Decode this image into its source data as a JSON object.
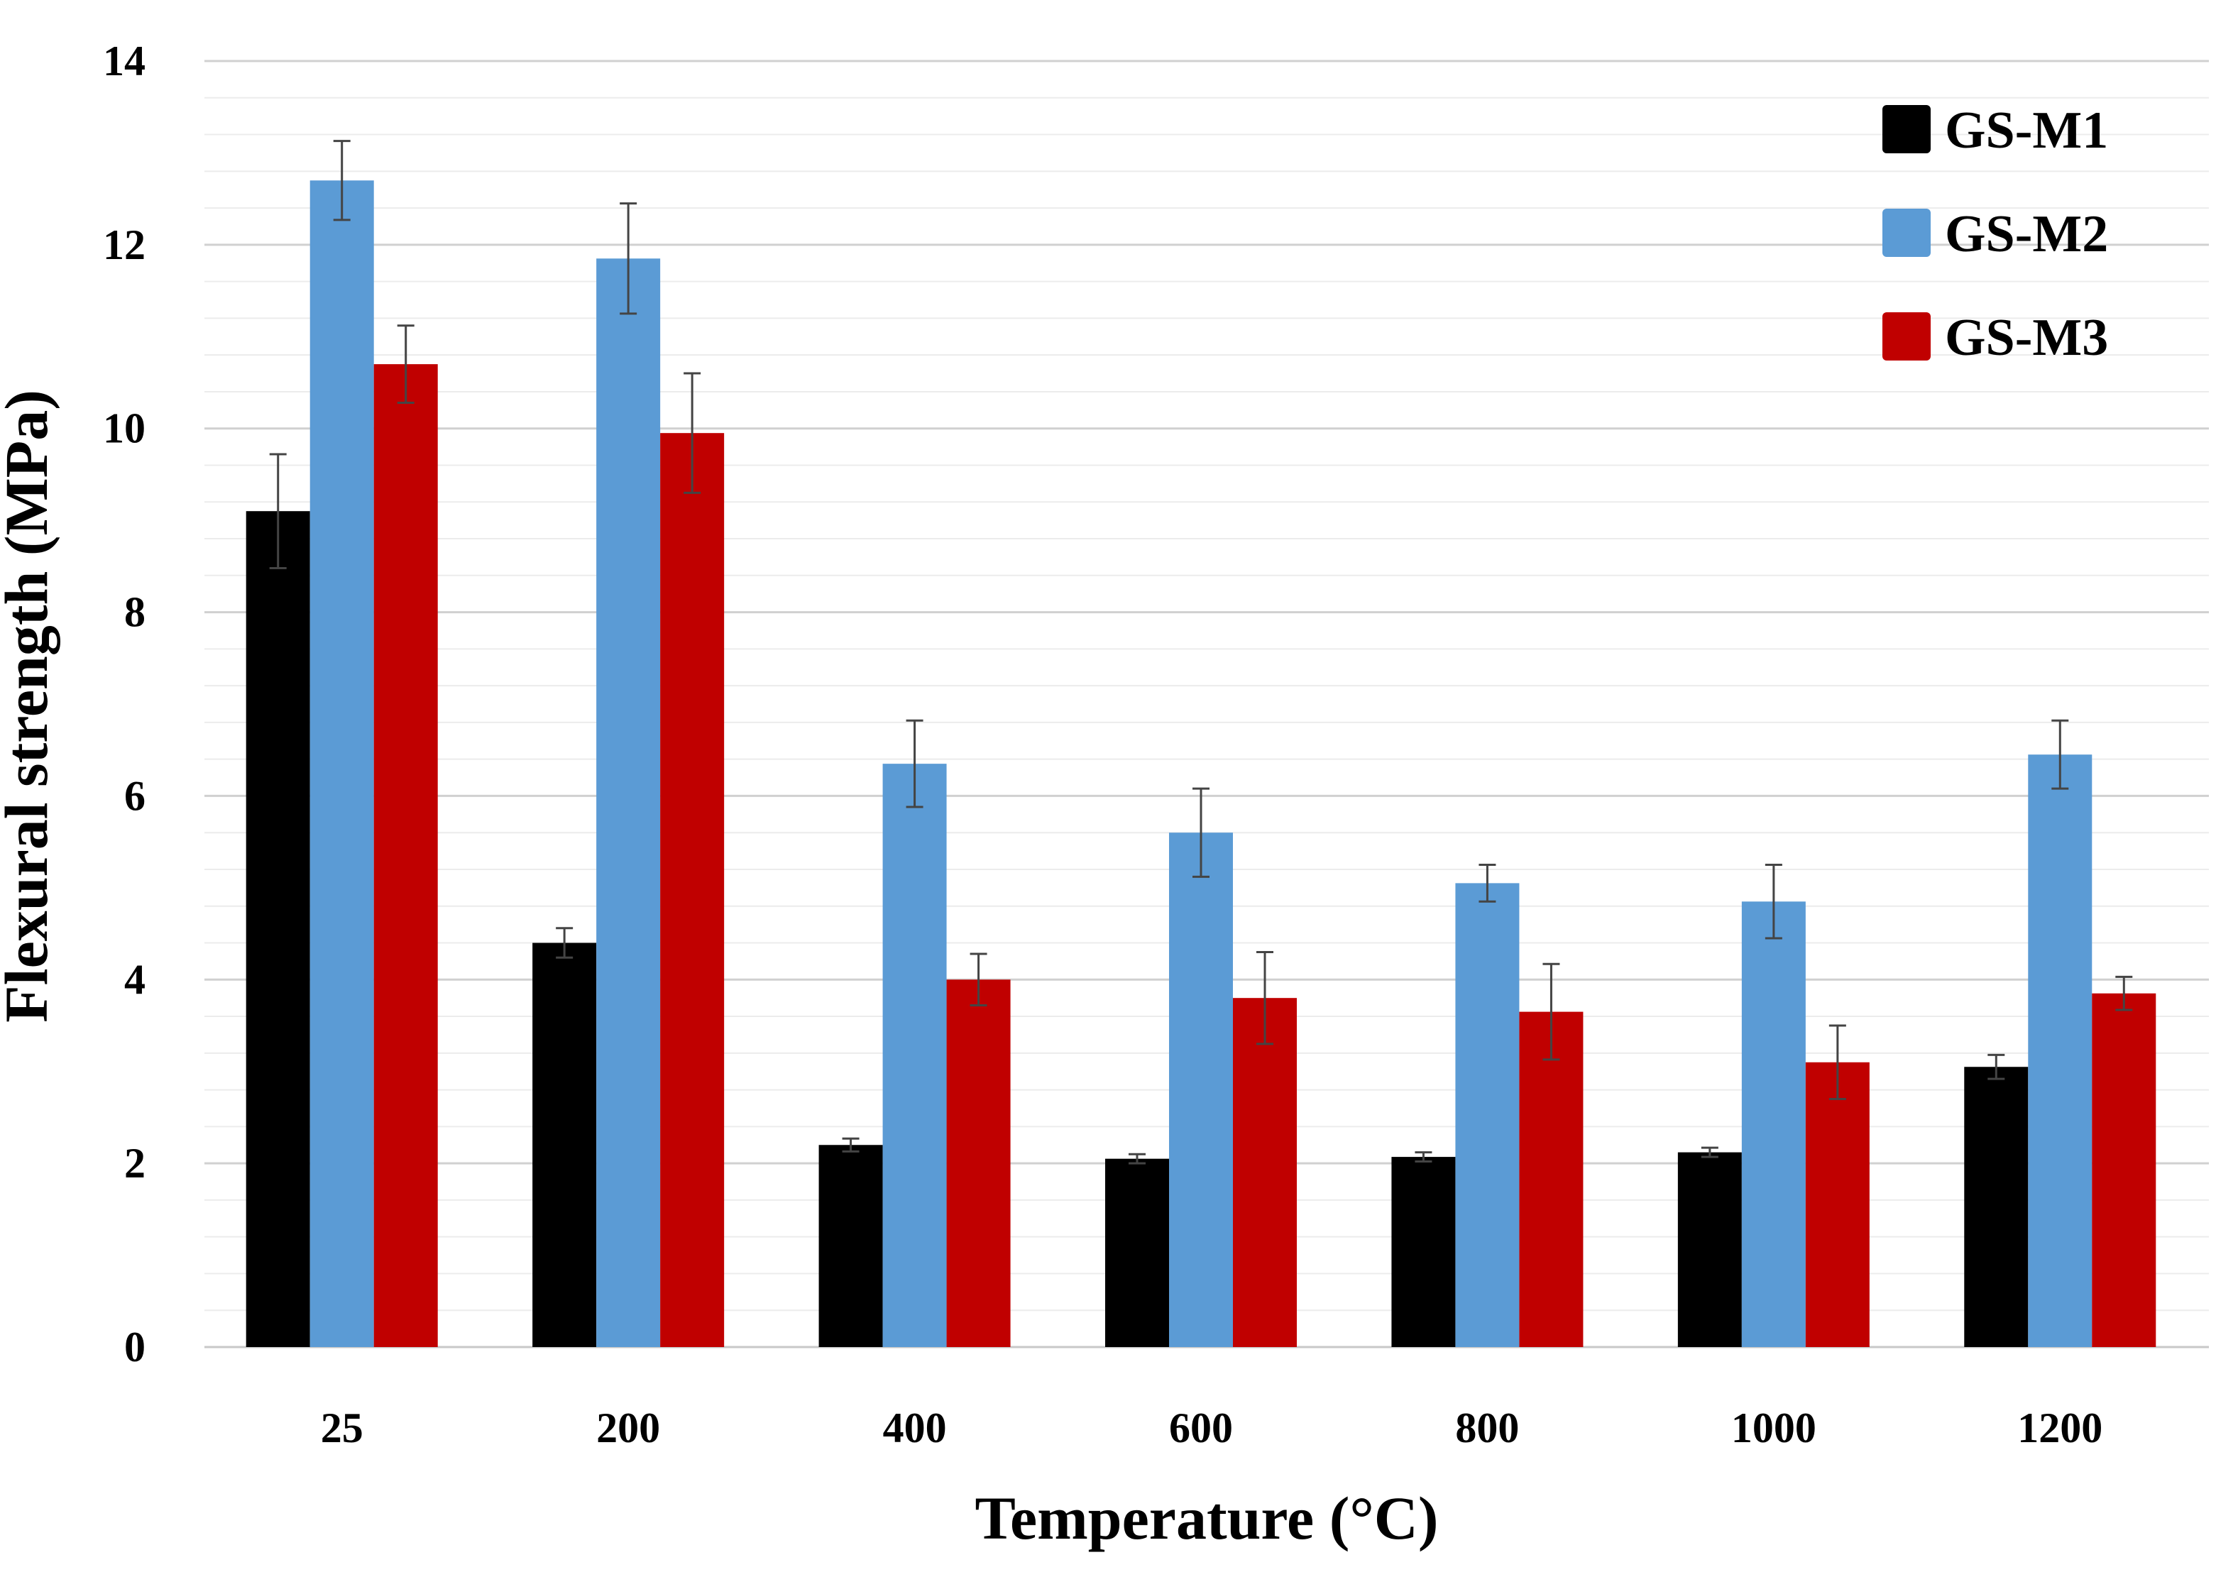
{
  "chart_data": {
    "type": "bar",
    "title": "",
    "xlabel": "Temperature (°C)",
    "ylabel": "Flexural strength (MPa)",
    "categories": [
      "25",
      "200",
      "400",
      "600",
      "800",
      "1000",
      "1200"
    ],
    "ylim": [
      0,
      14
    ],
    "yticks": [
      "0",
      "2",
      "4",
      "6",
      "8",
      "10",
      "12",
      "14"
    ],
    "grid": true,
    "legend_position": "top-right",
    "series": [
      {
        "name": "GS-M1",
        "color": "#000000",
        "values": [
          9.1,
          4.4,
          2.2,
          2.05,
          2.07,
          2.12,
          3.05
        ],
        "errors": [
          0.62,
          0.16,
          0.07,
          0.05,
          0.05,
          0.05,
          0.13
        ]
      },
      {
        "name": "GS-M2",
        "color": "#5B9BD5",
        "values": [
          12.7,
          11.85,
          6.35,
          5.6,
          5.05,
          4.85,
          6.45
        ],
        "errors": [
          0.43,
          0.6,
          0.47,
          0.48,
          0.2,
          0.4,
          0.37
        ]
      },
      {
        "name": "GS-M3",
        "color": "#C00000",
        "values": [
          10.7,
          9.95,
          4.0,
          3.8,
          3.65,
          3.1,
          3.85
        ],
        "errors": [
          0.42,
          0.65,
          0.28,
          0.5,
          0.52,
          0.4,
          0.18
        ]
      }
    ]
  }
}
